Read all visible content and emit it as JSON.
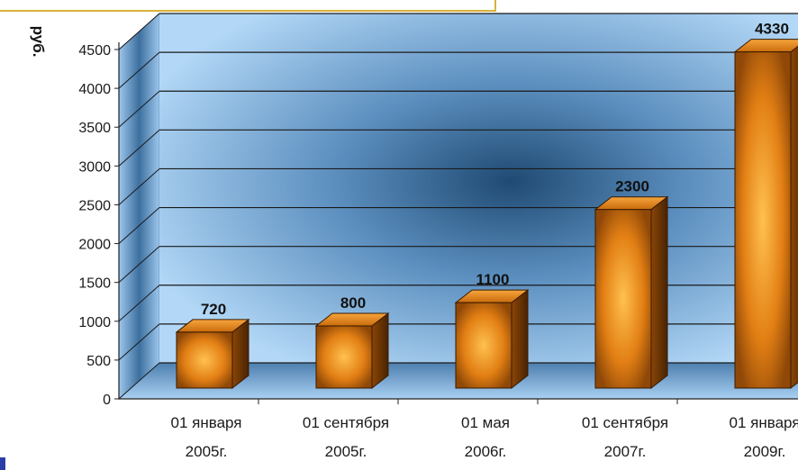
{
  "chart_data": {
    "type": "bar",
    "ylabel": "руб.",
    "xlabel": "",
    "ylim": [
      0,
      4500
    ],
    "yticks": [
      "0",
      "500",
      "1000",
      "1500",
      "2000",
      "2500",
      "3000",
      "3500",
      "4000",
      "4500"
    ],
    "categories": [
      {
        "line1": "01 января",
        "line2": "2005г."
      },
      {
        "line1": "01 сентября",
        "line2": "2005г."
      },
      {
        "line1": "01 мая",
        "line2": "2006г."
      },
      {
        "line1": "01 сентября",
        "line2": "2007г."
      },
      {
        "line1": "01 января",
        "line2": "2009г."
      }
    ],
    "values": [
      720,
      800,
      1100,
      2300,
      4330
    ],
    "data_labels": [
      "720",
      "800",
      "1100",
      "2300",
      "4330"
    ],
    "grid": true,
    "style": "3d-column",
    "colors": {
      "bar_light": "#ffb64a",
      "bar_mid": "#e07d12",
      "bar_dark": "#7a3c05",
      "wall_light": "#aed4f6",
      "wall_dark": "#1f4a73",
      "gridline": "#1a1a1a",
      "title_box_border": "#d8b23a"
    }
  }
}
